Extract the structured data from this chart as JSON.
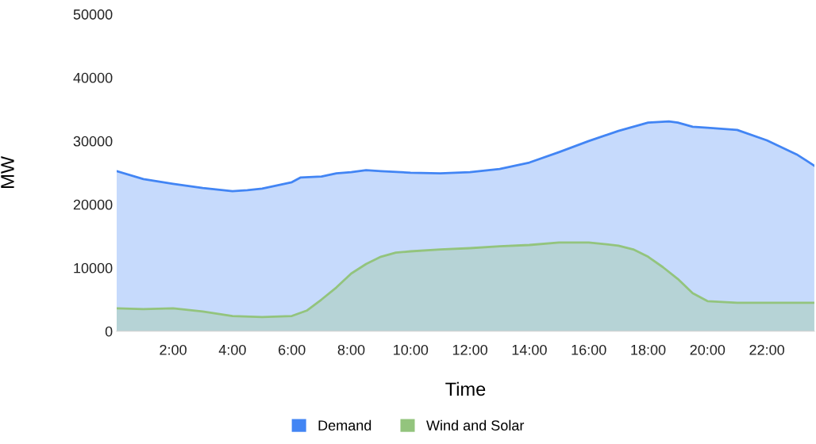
{
  "chart_data": {
    "type": "area",
    "xlabel": "Time",
    "ylabel": "MW",
    "xlim": [
      0.1,
      23.6
    ],
    "ylim": [
      0,
      50000
    ],
    "xticks": [
      {
        "value": 2,
        "label": "2:00"
      },
      {
        "value": 4,
        "label": "4:00"
      },
      {
        "value": 6,
        "label": "6:00"
      },
      {
        "value": 8,
        "label": "8:00"
      },
      {
        "value": 10,
        "label": "10:00"
      },
      {
        "value": 12,
        "label": "12:00"
      },
      {
        "value": 14,
        "label": "14:00"
      },
      {
        "value": 16,
        "label": "16:00"
      },
      {
        "value": 18,
        "label": "18:00"
      },
      {
        "value": 20,
        "label": "20:00"
      },
      {
        "value": 22,
        "label": "22:00"
      }
    ],
    "yticks": [
      0,
      10000,
      20000,
      30000,
      40000,
      50000
    ],
    "grid": false,
    "legend": "bottom",
    "series": [
      {
        "name": "Demand",
        "color": "#4285f4",
        "x": [
          0.1,
          1,
          2,
          3,
          4,
          4.5,
          5,
          6,
          6.3,
          7,
          7.5,
          8,
          8.5,
          9,
          10,
          11,
          12,
          13,
          14,
          15,
          16,
          17,
          18,
          18.7,
          19,
          19.5,
          20,
          21,
          22,
          23,
          23.6
        ],
        "values": [
          25250,
          24000,
          23250,
          22600,
          22100,
          22250,
          22500,
          23500,
          24250,
          24400,
          24900,
          25100,
          25400,
          25250,
          25000,
          24900,
          25100,
          25600,
          26600,
          28250,
          30000,
          31600,
          32900,
          33100,
          32900,
          32250,
          32100,
          31750,
          30100,
          27900,
          26100
        ]
      },
      {
        "name": "Wind and Solar",
        "color": "#93c47d",
        "x": [
          0.1,
          1,
          2,
          3,
          4,
          5,
          6,
          6.5,
          7,
          7.5,
          8,
          8.5,
          9,
          9.5,
          10,
          11,
          12,
          13,
          14,
          15,
          16,
          17,
          17.5,
          18,
          18.5,
          19,
          19.5,
          20,
          21,
          22,
          23,
          23.6
        ],
        "values": [
          3600,
          3500,
          3600,
          3100,
          2400,
          2250,
          2400,
          3250,
          5000,
          6900,
          9100,
          10600,
          11750,
          12400,
          12600,
          12900,
          13100,
          13400,
          13600,
          14000,
          14000,
          13500,
          12900,
          11750,
          10100,
          8250,
          6000,
          4750,
          4500,
          4500,
          4500,
          4500
        ]
      }
    ]
  }
}
